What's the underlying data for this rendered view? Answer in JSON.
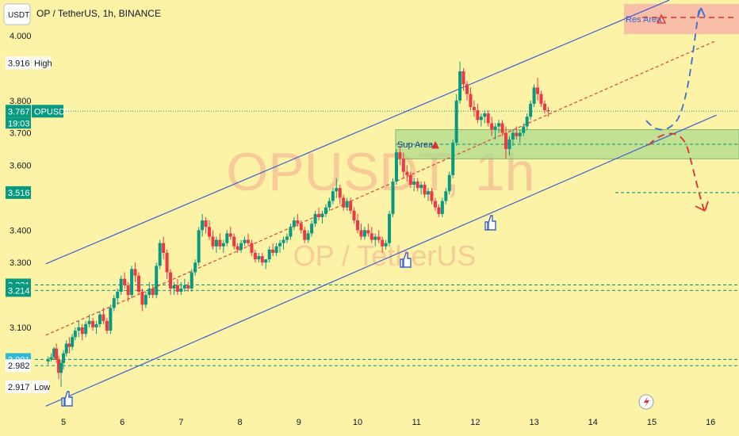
{
  "header": {
    "currency_button": "USDT",
    "title": "OP / TetherUS, 1h, BINANCE"
  },
  "watermark": {
    "symbol": "OPUSDT, 1h",
    "pair": "OP / TetherUS"
  },
  "annotations": {
    "res_area": "Res Area",
    "sup_area": "Sup Area"
  },
  "badges": {
    "high_value": "3.916",
    "high_label": "High",
    "price_value": "3.767",
    "price_symbol": "OPUSDT",
    "countdown": "19:03",
    "level_1": "3.516",
    "level_2": "3.231",
    "level_3": "3.214",
    "level_4": "3.001",
    "level_5": "2.982",
    "low_value": "2.917",
    "low_label": "Low"
  },
  "colors": {
    "background": "#fdf3a7",
    "bull": "#089981",
    "bear": "#f23645",
    "channel": "#3d5fd8",
    "midline": "#e0403a",
    "level": "#089981",
    "sup_zone": "#a8d88a",
    "res_zone": "#f7b4a8",
    "projection_up": "#3b6fd0",
    "projection_down": "#e0302f"
  },
  "chart_data": {
    "type": "candlestick",
    "title": "OP / TetherUS, 1h, BINANCE",
    "x_ticks": [
      "5",
      "6",
      "7",
      "8",
      "9",
      "10",
      "11",
      "12",
      "13",
      "14",
      "15",
      "16"
    ],
    "y_ticks": [
      "4.000",
      "3.800",
      "3.700",
      "3.600",
      "3.400",
      "3.300",
      "3.100"
    ],
    "ylim": [
      2.85,
      4.09
    ],
    "current_price": 3.767,
    "high": 3.916,
    "low": 2.917,
    "horizontal_levels": [
      3.231,
      3.214,
      3.001,
      2.982,
      3.516
    ],
    "sup_area": [
      3.62,
      3.71
    ],
    "res_area": [
      4.04,
      4.1
    ],
    "channel": {
      "upper": [
        [
          4.7,
          3.296
        ],
        [
          15.3,
          4.11
        ]
      ],
      "lower": [
        [
          4.7,
          2.857
        ],
        [
          16.1,
          3.755
        ]
      ],
      "mid": [
        [
          4.7,
          3.076
        ],
        [
          16.1,
          3.985
        ]
      ]
    },
    "candles": [
      [
        4.74,
        2.995,
        3.01,
        2.985,
        3.002
      ],
      [
        4.79,
        3.002,
        3.02,
        2.995,
        3.008
      ],
      [
        4.84,
        3.008,
        3.04,
        3.0,
        3.035
      ],
      [
        4.88,
        3.035,
        3.05,
        2.99,
        3.0
      ],
      [
        4.92,
        3.0,
        3.012,
        2.94,
        2.96
      ],
      [
        4.96,
        2.96,
        3.0,
        2.917,
        2.99
      ],
      [
        5.0,
        2.99,
        3.03,
        2.97,
        3.02
      ],
      [
        5.05,
        3.02,
        3.06,
        3.01,
        3.05
      ],
      [
        5.1,
        3.05,
        3.07,
        3.02,
        3.04
      ],
      [
        5.15,
        3.04,
        3.08,
        3.03,
        3.07
      ],
      [
        5.2,
        3.07,
        3.1,
        3.06,
        3.09
      ],
      [
        5.26,
        3.09,
        3.12,
        3.07,
        3.1
      ],
      [
        5.32,
        3.1,
        3.11,
        3.06,
        3.08
      ],
      [
        5.38,
        3.08,
        3.12,
        3.07,
        3.11
      ],
      [
        5.44,
        3.11,
        3.14,
        3.1,
        3.12
      ],
      [
        5.5,
        3.12,
        3.13,
        3.09,
        3.1
      ],
      [
        5.56,
        3.1,
        3.12,
        3.08,
        3.11
      ],
      [
        5.62,
        3.11,
        3.15,
        3.1,
        3.14
      ],
      [
        5.68,
        3.14,
        3.16,
        3.11,
        3.12
      ],
      [
        5.74,
        3.12,
        3.13,
        3.08,
        3.09
      ],
      [
        5.8,
        3.09,
        3.17,
        3.08,
        3.16
      ],
      [
        5.86,
        3.16,
        3.2,
        3.15,
        3.19
      ],
      [
        5.92,
        3.19,
        3.22,
        3.17,
        3.21
      ],
      [
        5.98,
        3.21,
        3.26,
        3.2,
        3.25
      ],
      [
        6.04,
        3.25,
        3.27,
        3.22,
        3.23
      ],
      [
        6.1,
        3.23,
        3.24,
        3.18,
        3.2
      ],
      [
        6.16,
        3.2,
        3.29,
        3.19,
        3.28
      ],
      [
        6.22,
        3.28,
        3.3,
        3.24,
        3.26
      ],
      [
        6.28,
        3.26,
        3.27,
        3.2,
        3.21
      ],
      [
        6.34,
        3.21,
        3.22,
        3.15,
        3.17
      ],
      [
        6.4,
        3.17,
        3.21,
        3.16,
        3.2
      ],
      [
        6.46,
        3.2,
        3.24,
        3.19,
        3.22
      ],
      [
        6.52,
        3.22,
        3.23,
        3.19,
        3.2
      ],
      [
        6.58,
        3.2,
        3.3,
        3.19,
        3.29
      ],
      [
        6.64,
        3.29,
        3.37,
        3.28,
        3.36
      ],
      [
        6.7,
        3.36,
        3.38,
        3.31,
        3.33
      ],
      [
        6.76,
        3.33,
        3.34,
        3.25,
        3.27
      ],
      [
        6.82,
        3.27,
        3.28,
        3.2,
        3.22
      ],
      [
        6.88,
        3.22,
        3.24,
        3.2,
        3.23
      ],
      [
        6.94,
        3.23,
        3.25,
        3.2,
        3.21
      ],
      [
        7.0,
        3.21,
        3.24,
        3.2,
        3.22
      ],
      [
        7.06,
        3.22,
        3.25,
        3.21,
        3.23
      ],
      [
        7.12,
        3.23,
        3.24,
        3.21,
        3.22
      ],
      [
        7.18,
        3.22,
        3.28,
        3.21,
        3.27
      ],
      [
        7.24,
        3.27,
        3.31,
        3.26,
        3.3
      ],
      [
        7.3,
        3.3,
        3.41,
        3.29,
        3.4
      ],
      [
        7.36,
        3.4,
        3.45,
        3.38,
        3.43
      ],
      [
        7.42,
        3.43,
        3.44,
        3.39,
        3.41
      ],
      [
        7.48,
        3.41,
        3.43,
        3.37,
        3.38
      ],
      [
        7.54,
        3.38,
        3.4,
        3.34,
        3.35
      ],
      [
        7.6,
        3.35,
        3.38,
        3.33,
        3.37
      ],
      [
        7.66,
        3.37,
        3.39,
        3.34,
        3.35
      ],
      [
        7.72,
        3.35,
        3.37,
        3.33,
        3.36
      ],
      [
        7.78,
        3.36,
        3.4,
        3.35,
        3.39
      ],
      [
        7.84,
        3.39,
        3.41,
        3.37,
        3.38
      ],
      [
        7.9,
        3.38,
        3.39,
        3.34,
        3.35
      ],
      [
        7.96,
        3.35,
        3.36,
        3.33,
        3.34
      ],
      [
        8.02,
        3.34,
        3.37,
        3.33,
        3.36
      ],
      [
        8.08,
        3.36,
        3.38,
        3.35,
        3.37
      ],
      [
        8.14,
        3.37,
        3.39,
        3.35,
        3.36
      ],
      [
        8.2,
        3.36,
        3.37,
        3.32,
        3.33
      ],
      [
        8.26,
        3.33,
        3.34,
        3.3,
        3.31
      ],
      [
        8.32,
        3.31,
        3.33,
        3.3,
        3.32
      ],
      [
        8.38,
        3.32,
        3.33,
        3.29,
        3.3
      ],
      [
        8.44,
        3.3,
        3.31,
        3.28,
        3.31
      ],
      [
        8.5,
        3.31,
        3.35,
        3.3,
        3.34
      ],
      [
        8.56,
        3.34,
        3.36,
        3.32,
        3.33
      ],
      [
        8.62,
        3.33,
        3.36,
        3.32,
        3.35
      ],
      [
        8.68,
        3.35,
        3.37,
        3.33,
        3.36
      ],
      [
        8.74,
        3.36,
        3.38,
        3.34,
        3.37
      ],
      [
        8.8,
        3.37,
        3.39,
        3.36,
        3.38
      ],
      [
        8.86,
        3.38,
        3.42,
        3.37,
        3.41
      ],
      [
        8.92,
        3.41,
        3.44,
        3.4,
        3.43
      ],
      [
        8.98,
        3.43,
        3.45,
        3.41,
        3.42
      ],
      [
        9.04,
        3.42,
        3.43,
        3.39,
        3.4
      ],
      [
        9.1,
        3.4,
        3.41,
        3.36,
        3.37
      ],
      [
        9.16,
        3.37,
        3.4,
        3.36,
        3.39
      ],
      [
        9.22,
        3.39,
        3.43,
        3.38,
        3.42
      ],
      [
        9.28,
        3.42,
        3.46,
        3.41,
        3.45
      ],
      [
        9.34,
        3.45,
        3.47,
        3.43,
        3.44
      ],
      [
        9.4,
        3.44,
        3.46,
        3.42,
        3.45
      ],
      [
        9.46,
        3.45,
        3.48,
        3.44,
        3.47
      ],
      [
        9.52,
        3.47,
        3.5,
        3.46,
        3.49
      ],
      [
        9.58,
        3.49,
        3.53,
        3.48,
        3.52
      ],
      [
        9.64,
        3.52,
        3.56,
        3.5,
        3.53
      ],
      [
        9.7,
        3.53,
        3.54,
        3.48,
        3.5
      ],
      [
        9.76,
        3.5,
        3.51,
        3.46,
        3.47
      ],
      [
        9.82,
        3.47,
        3.5,
        3.46,
        3.49
      ],
      [
        9.88,
        3.49,
        3.5,
        3.45,
        3.46
      ],
      [
        9.94,
        3.46,
        3.47,
        3.42,
        3.43
      ],
      [
        10.0,
        3.43,
        3.45,
        3.39,
        3.4
      ],
      [
        10.06,
        3.4,
        3.42,
        3.37,
        3.38
      ],
      [
        10.12,
        3.38,
        3.41,
        3.37,
        3.4
      ],
      [
        10.18,
        3.4,
        3.42,
        3.38,
        3.39
      ],
      [
        10.24,
        3.39,
        3.41,
        3.36,
        3.37
      ],
      [
        10.3,
        3.37,
        3.39,
        3.35,
        3.38
      ],
      [
        10.36,
        3.38,
        3.4,
        3.36,
        3.37
      ],
      [
        10.42,
        3.37,
        3.38,
        3.33,
        3.35
      ],
      [
        10.48,
        3.35,
        3.37,
        3.34,
        3.36
      ],
      [
        10.54,
        3.36,
        3.46,
        3.35,
        3.45
      ],
      [
        10.6,
        3.45,
        3.56,
        3.44,
        3.55
      ],
      [
        10.66,
        3.55,
        3.65,
        3.54,
        3.64
      ],
      [
        10.72,
        3.64,
        3.66,
        3.6,
        3.62
      ],
      [
        10.78,
        3.62,
        3.64,
        3.56,
        3.58
      ],
      [
        10.84,
        3.58,
        3.6,
        3.55,
        3.57
      ],
      [
        10.9,
        3.57,
        3.58,
        3.53,
        3.54
      ],
      [
        10.96,
        3.54,
        3.56,
        3.52,
        3.55
      ],
      [
        11.02,
        3.55,
        3.56,
        3.52,
        3.53
      ],
      [
        11.08,
        3.53,
        3.55,
        3.51,
        3.54
      ],
      [
        11.14,
        3.54,
        3.55,
        3.5,
        3.51
      ],
      [
        11.2,
        3.51,
        3.53,
        3.49,
        3.52
      ],
      [
        11.26,
        3.52,
        3.53,
        3.48,
        3.49
      ],
      [
        11.32,
        3.49,
        3.5,
        3.46,
        3.47
      ],
      [
        11.38,
        3.47,
        3.48,
        3.44,
        3.45
      ],
      [
        11.44,
        3.45,
        3.5,
        3.44,
        3.49
      ],
      [
        11.5,
        3.49,
        3.53,
        3.48,
        3.52
      ],
      [
        11.56,
        3.52,
        3.58,
        3.51,
        3.57
      ],
      [
        11.62,
        3.57,
        3.68,
        3.56,
        3.67
      ],
      [
        11.68,
        3.67,
        3.82,
        3.66,
        3.8
      ],
      [
        11.74,
        3.8,
        3.92,
        3.79,
        3.89
      ],
      [
        11.8,
        3.89,
        3.9,
        3.83,
        3.85
      ],
      [
        11.86,
        3.85,
        3.86,
        3.8,
        3.82
      ],
      [
        11.92,
        3.82,
        3.84,
        3.77,
        3.78
      ],
      [
        11.98,
        3.78,
        3.8,
        3.75,
        3.77
      ],
      [
        12.04,
        3.77,
        3.79,
        3.73,
        3.74
      ],
      [
        12.1,
        3.74,
        3.76,
        3.72,
        3.75
      ],
      [
        12.16,
        3.75,
        3.77,
        3.73,
        3.76
      ],
      [
        12.22,
        3.76,
        3.77,
        3.72,
        3.73
      ],
      [
        12.28,
        3.73,
        3.75,
        3.69,
        3.71
      ],
      [
        12.34,
        3.71,
        3.73,
        3.68,
        3.72
      ],
      [
        12.4,
        3.72,
        3.74,
        3.7,
        3.73
      ],
      [
        12.46,
        3.73,
        3.74,
        3.69,
        3.7
      ],
      [
        12.52,
        3.7,
        3.72,
        3.62,
        3.65
      ],
      [
        12.58,
        3.65,
        3.69,
        3.63,
        3.68
      ],
      [
        12.64,
        3.68,
        3.71,
        3.66,
        3.7
      ],
      [
        12.7,
        3.7,
        3.72,
        3.68,
        3.69
      ],
      [
        12.76,
        3.69,
        3.71,
        3.67,
        3.7
      ],
      [
        12.82,
        3.7,
        3.73,
        3.69,
        3.72
      ],
      [
        12.88,
        3.72,
        3.76,
        3.71,
        3.75
      ],
      [
        12.94,
        3.75,
        3.8,
        3.74,
        3.79
      ],
      [
        13.0,
        3.79,
        3.85,
        3.78,
        3.84
      ],
      [
        13.06,
        3.84,
        3.87,
        3.8,
        3.82
      ],
      [
        13.12,
        3.82,
        3.83,
        3.78,
        3.79
      ],
      [
        13.18,
        3.79,
        3.8,
        3.76,
        3.77
      ],
      [
        13.24,
        3.77,
        3.78,
        3.75,
        3.767
      ]
    ]
  }
}
